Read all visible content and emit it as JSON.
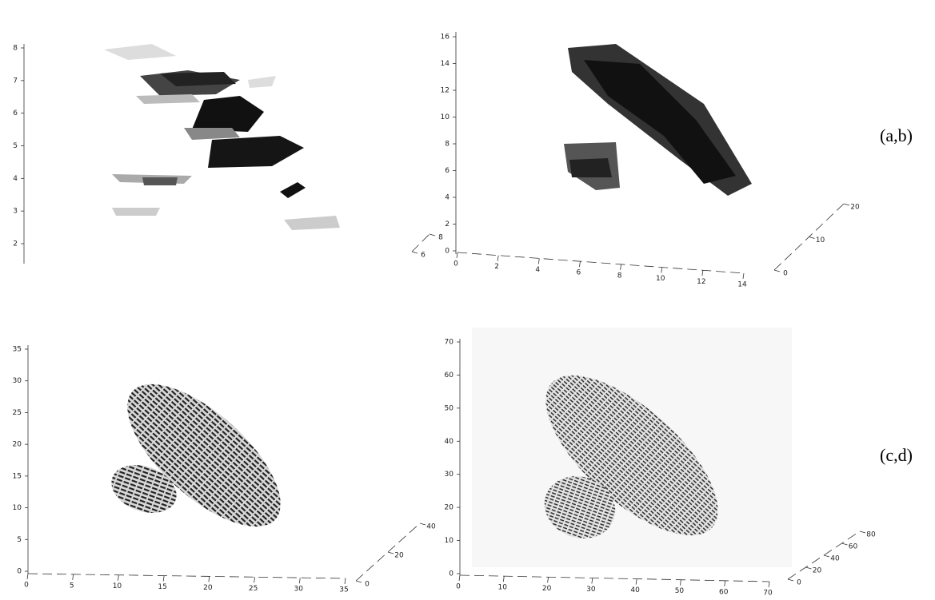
{
  "panels": [
    {
      "yticks": [
        2,
        3,
        4,
        5,
        6,
        7,
        8
      ],
      "zticks": [
        6,
        8
      ]
    },
    {
      "yticks": [
        0,
        2,
        4,
        6,
        8,
        10,
        12,
        14,
        16
      ],
      "xticks": [
        0,
        2,
        4,
        6,
        8,
        10,
        12,
        14
      ],
      "zticks": [
        0,
        10,
        20
      ]
    },
    {
      "yticks": [
        0,
        5,
        10,
        15,
        20,
        25,
        30,
        35
      ],
      "xticks": [
        0,
        5,
        10,
        15,
        20,
        25,
        30,
        35
      ],
      "zticks": [
        0,
        20,
        40
      ]
    },
    {
      "yticks": [
        0,
        10,
        20,
        30,
        40,
        50,
        60,
        70
      ],
      "xticks": [
        0,
        10,
        20,
        30,
        40,
        50,
        60,
        70
      ],
      "zticks": [
        0,
        20,
        40,
        60,
        80
      ]
    }
  ],
  "labels": [
    "(a,b)",
    "(c,d)"
  ]
}
